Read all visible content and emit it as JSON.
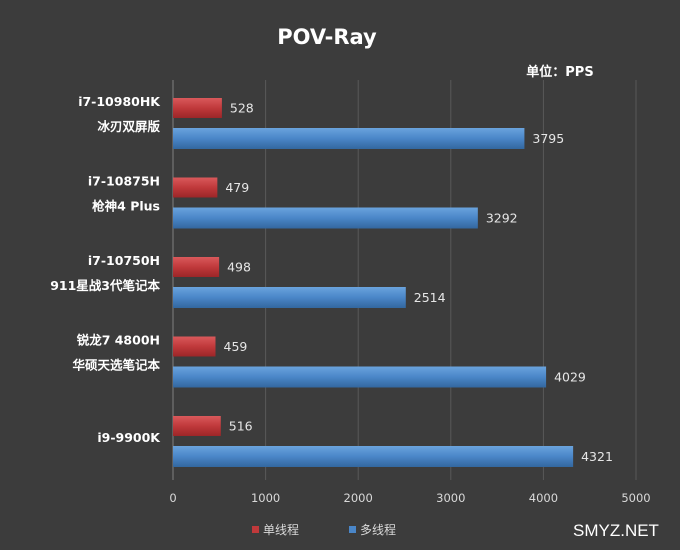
{
  "chart_data": {
    "type": "bar",
    "orientation": "horizontal",
    "title": "POV-Ray",
    "unit_label": "单位：PPS",
    "categories": [
      [
        "i7-10980HK",
        "冰刃双屏版"
      ],
      [
        "i7-10875H",
        "枪神4 Plus"
      ],
      [
        "i7-10750H",
        "911星战3代笔记本"
      ],
      [
        "锐龙7 4800H",
        "华硕天选笔记本"
      ],
      [
        "i9-9900K"
      ]
    ],
    "series": [
      {
        "name": "单线程",
        "color": "#c0393b",
        "values": [
          528,
          479,
          498,
          459,
          516
        ]
      },
      {
        "name": "多线程",
        "color": "#4a86c8",
        "values": [
          3795,
          3292,
          2514,
          4029,
          4321
        ]
      }
    ],
    "xlim": [
      0,
      5000
    ],
    "xticks": [
      0,
      1000,
      2000,
      3000,
      4000,
      5000
    ],
    "grid": true,
    "legend_position": "bottom"
  },
  "watermark": "SMYZ.NET"
}
